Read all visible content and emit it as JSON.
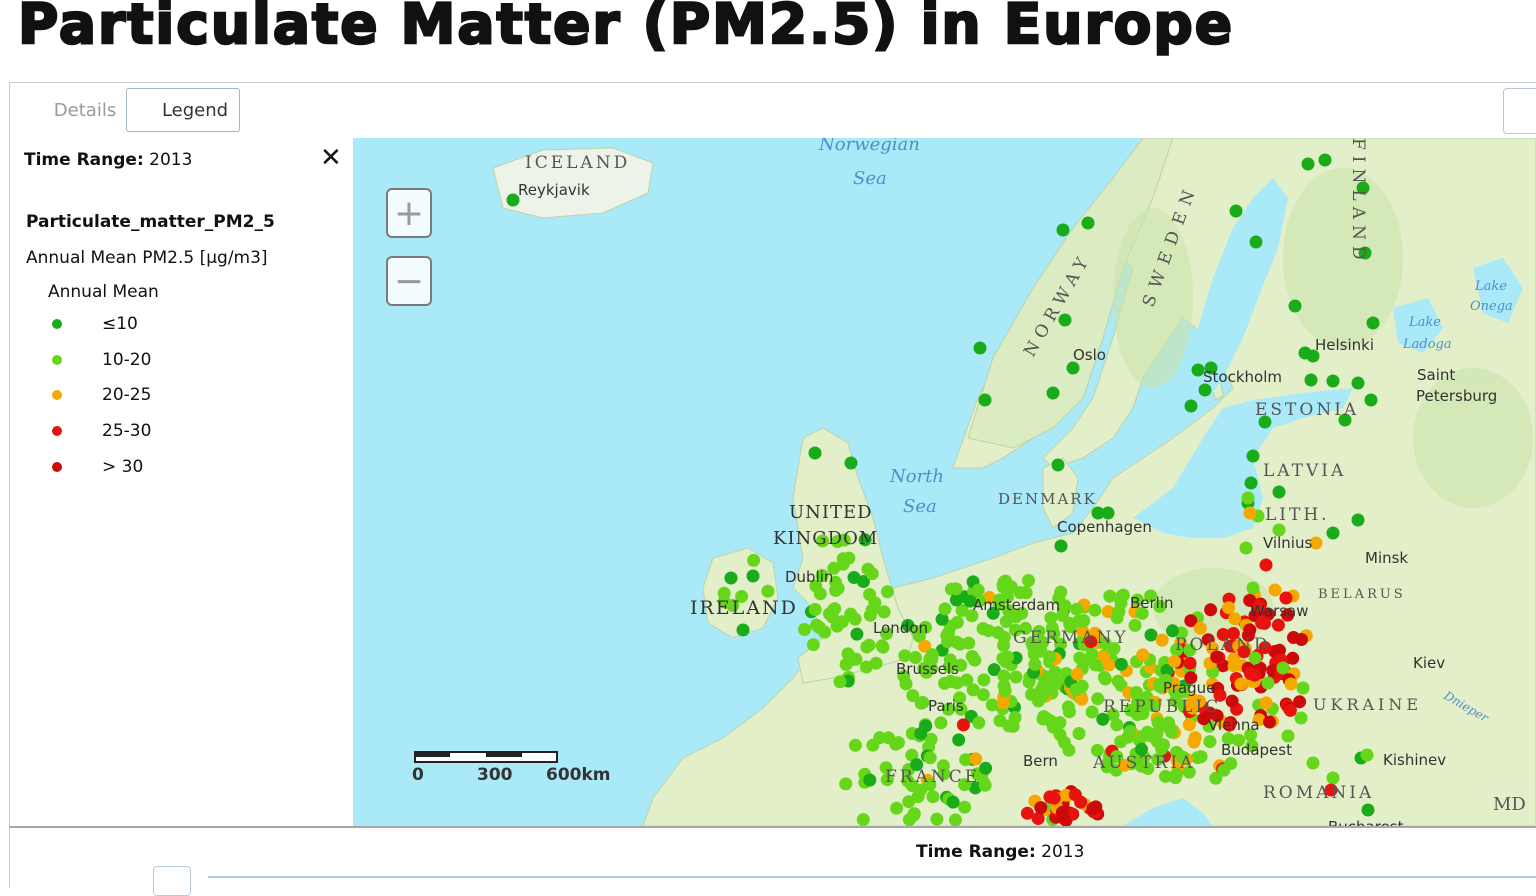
{
  "title": "Particulate Matter (PM2.5) in Europe",
  "tabs": {
    "details": "Details",
    "legend": "Legend"
  },
  "legend": {
    "time_range_label": "Time Range:",
    "time_range_value": " 2013",
    "close_glyph": "✕",
    "layer_title": "Particulate_matter_PM2_5",
    "subtitle": "Annual Mean PM2.5 [μg/m3]",
    "group": "Annual Mean",
    "items": [
      {
        "label": "≤10",
        "color": "#1aab1a"
      },
      {
        "label": "10-20",
        "color": "#66d61a"
      },
      {
        "label": "20-25",
        "color": "#f5a800"
      },
      {
        "label": "25-30",
        "color": "#e8120f"
      },
      {
        "label": "> 30",
        "color": "#cc0a0a"
      }
    ]
  },
  "map": {
    "zoom_in": "+",
    "zoom_out": "−",
    "scale_labels": [
      "0",
      "300",
      "600km"
    ],
    "sea_labels": [
      "Norwegian",
      "Sea",
      "North",
      "Sea",
      "Lake",
      "Onega",
      "Lake",
      "Ladoga",
      "Dnieper"
    ],
    "country_labels": [
      "ICELAND",
      "NORWAY",
      "SWEDEN",
      "FINLAND",
      "ESTONIA",
      "LATVIA",
      "LITH.",
      "DENMARK",
      "UNITED",
      "KINGDOM",
      "IRELAND",
      "BELARUS",
      "POLAND",
      "GERMANY",
      "UKRAINE",
      "FRANCE",
      "AUSTRIA",
      "REPUBLIC",
      "ROMANIA",
      "MD"
    ],
    "city_labels": [
      "Reykjavik",
      "Oslo",
      "Stockholm",
      "Helsinki",
      "Saint",
      "Petersburg",
      "Copenhagen",
      "Vilnius",
      "Minsk",
      "Dublin",
      "London",
      "Amsterdam",
      "Berlin",
      "Warsaw",
      "Kiev",
      "Paris",
      "Brussels",
      "Prague",
      "Vienna",
      "Budapest",
      "Kishinev",
      "Bern",
      "Bucharest"
    ],
    "colors": {
      "water": "#a9e9f8",
      "land": "#e2efc9",
      "forest": "#cbe2ad"
    }
  },
  "bottom": {
    "time_range_label": "Time Range:",
    "time_range_value": " 2013"
  }
}
